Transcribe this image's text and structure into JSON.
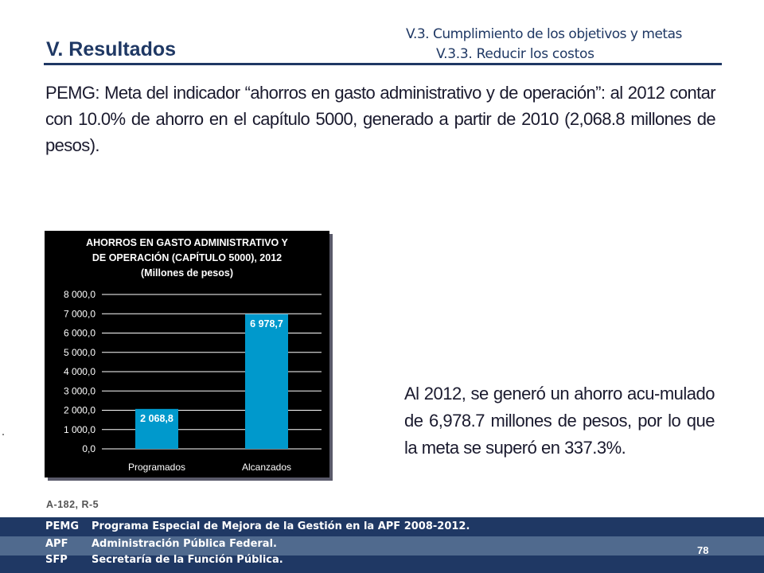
{
  "header": {
    "title": "V. Resultados",
    "subtitle_line1": "V.3. Cumplimiento de los objetivos y metas",
    "subtitle_line2": "V.3.3. Reducir los costos"
  },
  "intro_text": "PEMG: Meta del indicador “ahorros en gasto administrativo y de operación”: al 2012 contar con 10.0% de ahorro en el capítulo 5000, generado a partir de 2010 (2,068.8 millones de pesos).",
  "chart_data": {
    "type": "bar",
    "title_lines": [
      "AHORROS EN GASTO ADMINISTRATIVO  Y",
      "DE OPERACIÓN (CAPÍTULO 5000), 2012",
      "(Millones de pesos)"
    ],
    "categories": [
      "Programados",
      "Alcanzados"
    ],
    "values": [
      2068.8,
      6978.7
    ],
    "data_labels": [
      "2 068,8",
      "6 978,7"
    ],
    "y_ticks": [
      "0,0",
      "1 000,0",
      "2 000,0",
      "3 000,0",
      "4 000,0",
      "5 000,0",
      "6 000,0",
      "7 000,0",
      "8 000,0"
    ],
    "ylim": [
      0,
      8000
    ],
    "grid": true,
    "bar_color": "#0099cc",
    "xlabel": "",
    "ylabel": ""
  },
  "conclusion_text": "Al 2012, se generó un ahorro acu-mulado de 6,978.7 millones de pesos, por lo que la meta se superó en 337.3%.",
  "source_note": "A-182, R-5",
  "footer": {
    "rows": [
      {
        "abbr": "PEMG",
        "text": "Programa Especial de Mejora de la Gestión en la APF 2008-2012."
      },
      {
        "abbr": "APF",
        "text": "Administración Pública Federal."
      },
      {
        "abbr": "SFP",
        "text": "Secretaría de la  Función Pública."
      }
    ],
    "page_number": "78"
  },
  "colors": {
    "navy": "#1f3864",
    "footer_band": "#506a8e",
    "bar": "#0099cc"
  }
}
